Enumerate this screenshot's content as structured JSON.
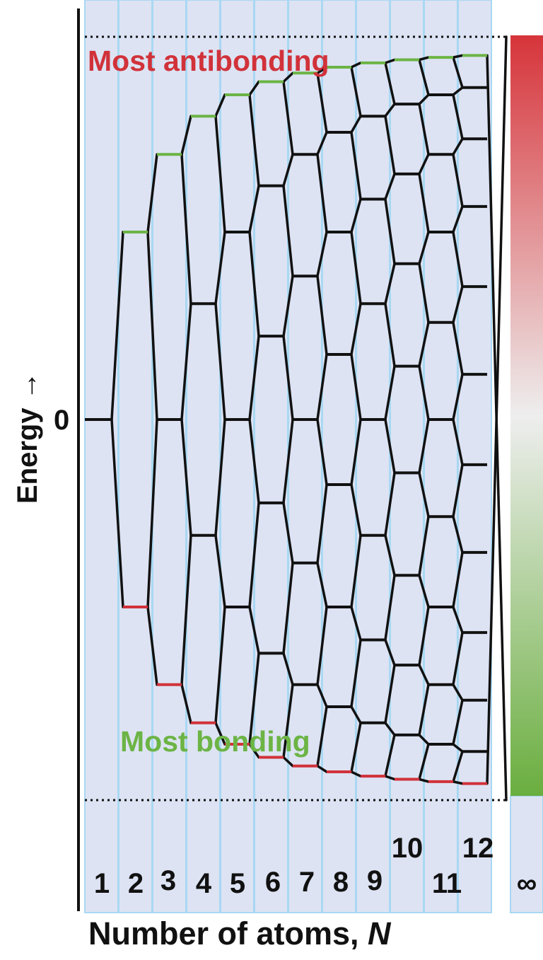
{
  "axis": {
    "y_label": "Energy →",
    "zero_label": "0",
    "x_label": "Number of atoms, ",
    "x_label_var": "N"
  },
  "annotations": {
    "top": "Most antibonding",
    "bottom": "Most bonding"
  },
  "columns": [
    "1",
    "2",
    "3",
    "4",
    "5",
    "6",
    "7",
    "8",
    "9",
    "10",
    "11",
    "12",
    "∞"
  ],
  "colors": {
    "antibonding": "#d1323a",
    "bonding": "#6cb445",
    "column_fill": "#dde3f3",
    "column_border": "#a9d8f2",
    "lines": "#111111"
  }
}
